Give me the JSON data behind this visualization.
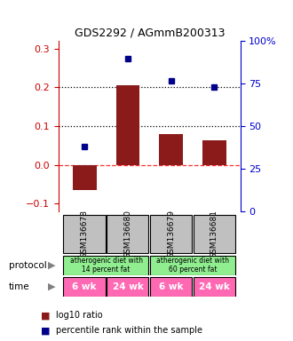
{
  "title": "GDS2292 / AGmmB200313",
  "samples": [
    "GSM136678",
    "GSM136680",
    "GSM136679",
    "GSM136681"
  ],
  "log10_ratio": [
    -0.065,
    0.205,
    0.08,
    0.063
  ],
  "percentile_rank": [
    0.048,
    0.275,
    0.218,
    0.202
  ],
  "bar_color": "#8B1A1A",
  "dot_color": "#00008B",
  "ylim": [
    -0.12,
    0.32
  ],
  "yticks_left": [
    -0.1,
    0.0,
    0.1,
    0.2,
    0.3
  ],
  "yticks_right": [
    0,
    25,
    50,
    75,
    100
  ],
  "hlines_dotted": [
    0.1,
    0.2
  ],
  "hline_zero": 0.0,
  "protocol_labels": [
    "atherogenic diet with\n14 percent fat",
    "atherogenic diet with\n60 percent fat"
  ],
  "protocol_color": "#90EE90",
  "time_labels": [
    "6 wk",
    "24 wk",
    "6 wk",
    "24 wk"
  ],
  "time_color": "#FF69B4",
  "sample_box_color": "#C0C0C0",
  "legend_bar_label": "log10 ratio",
  "legend_dot_label": "percentile rank within the sample"
}
